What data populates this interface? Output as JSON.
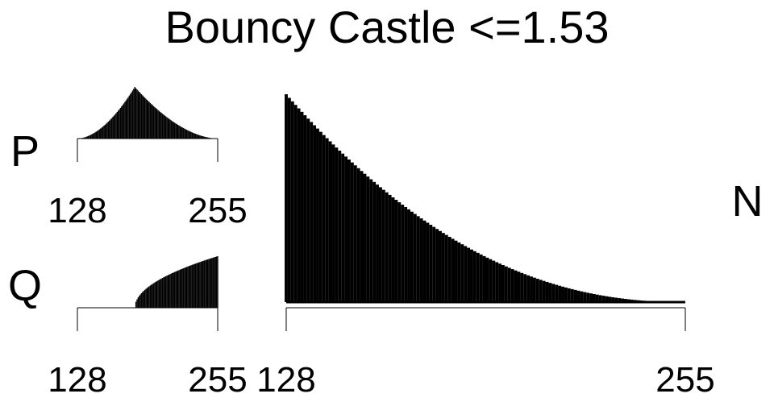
{
  "title": "Bouncy Castle <=1.53",
  "chart_data": [
    {
      "id": "P",
      "type": "bar",
      "panel_label": "P",
      "x_range": [
        128,
        255
      ],
      "tick_labels": [
        "128",
        "255"
      ],
      "shape": "peak",
      "peak_x": 180,
      "relative_height_at_start": 0.0,
      "relative_height_at_peak": 1.0,
      "relative_height_at_end": 0.0
    },
    {
      "id": "Q",
      "type": "bar",
      "panel_label": "Q",
      "x_range": [
        128,
        255
      ],
      "tick_labels": [
        "128",
        "255"
      ],
      "shape": "rising",
      "start_x": 180,
      "relative_height_at_start": 0.0,
      "relative_height_at_end": 1.0
    },
    {
      "id": "N",
      "type": "bar",
      "panel_label": "N",
      "x_range": [
        128,
        255
      ],
      "tick_labels": [
        "128",
        "255"
      ],
      "shape": "decaying",
      "relative_height_at_start": 1.0,
      "relative_height_at_end": 0.0
    }
  ]
}
